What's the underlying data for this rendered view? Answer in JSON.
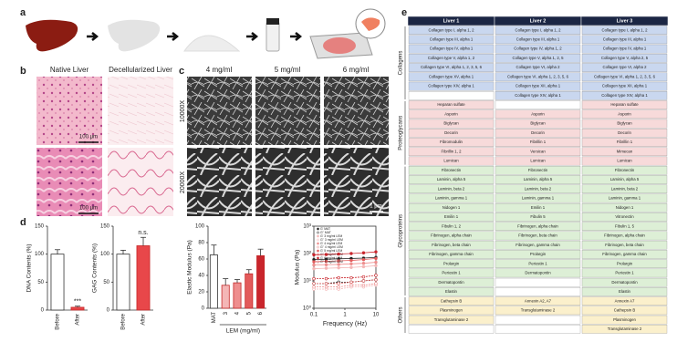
{
  "panels": {
    "a": {
      "label": "a"
    },
    "b": {
      "label": "b",
      "columns": [
        "Native Liver",
        "Decellularized Liver"
      ],
      "scale_bars": [
        "100 μm",
        "100 μm"
      ]
    },
    "c": {
      "label": "c",
      "columns": [
        "4 mg/ml",
        "5 mg/ml",
        "6 mg/ml"
      ],
      "rows": [
        "10000X",
        "20000X"
      ],
      "scale_bar": "1 μm"
    },
    "d": {
      "label": "d"
    },
    "e": {
      "label": "e"
    }
  },
  "chart_data": [
    {
      "type": "bar",
      "ylabel": "DNA Contents (%)",
      "categories": [
        "Before",
        "After"
      ],
      "values": [
        100,
        5
      ],
      "errors": [
        8,
        2
      ],
      "colors": [
        "#ffffff",
        "#e8474a"
      ],
      "ylim": [
        0,
        150
      ],
      "yticks": [
        0,
        50,
        100,
        150
      ],
      "annotation": "***"
    },
    {
      "type": "bar",
      "ylabel": "GAG Contents (%)",
      "categories": [
        "Before",
        "After"
      ],
      "values": [
        100,
        115
      ],
      "errors": [
        7,
        15
      ],
      "colors": [
        "#ffffff",
        "#e8474a"
      ],
      "ylim": [
        0,
        150
      ],
      "yticks": [
        0,
        50,
        100,
        150
      ],
      "annotation": "n.s."
    },
    {
      "type": "bar",
      "ylabel": "Elastic Modulus (Pa)",
      "xlabel": "LEM (mg/ml)",
      "categories": [
        "MAT",
        "3",
        "4",
        "5",
        "6"
      ],
      "values": [
        65,
        28,
        31,
        42,
        64
      ],
      "errors": [
        12,
        8,
        4,
        5,
        8
      ],
      "colors": [
        "#ffffff",
        "#f4b6b6",
        "#ee8e8e",
        "#e35b5b",
        "#c9252c"
      ],
      "ylim": [
        0,
        100
      ],
      "yticks": [
        0,
        20,
        40,
        60,
        80,
        100
      ]
    },
    {
      "type": "line",
      "ylabel": "Modulus (Pa)",
      "xlabel": "Frequency (Hz)",
      "log_x": true,
      "log_y": true,
      "legend": "upper left",
      "x": [
        0.1,
        0.25,
        0.63,
        1.6,
        4,
        10
      ],
      "xlim": [
        0.1,
        10
      ],
      "xticks": [
        0.1,
        1,
        10
      ],
      "ylim": [
        1,
        1000
      ],
      "yticks": [
        {
          "value": 1,
          "label": "10⁰"
        },
        {
          "value": 10,
          "label": "10¹"
        },
        {
          "value": 100,
          "label": "10²"
        },
        {
          "value": 1000,
          "label": "10³"
        }
      ],
      "series": [
        {
          "name": "G' MAT",
          "color": "#222222",
          "values": [
            60,
            62,
            64,
            66,
            68,
            72
          ]
        },
        {
          "name": "G'' MAT",
          "color": "#222222",
          "values": [
            8,
            8,
            9,
            9,
            10,
            11
          ]
        },
        {
          "name": "G' 3 mg/ml LEM",
          "color": "#f4b6b6",
          "values": [
            28,
            29,
            30,
            31,
            33,
            36
          ]
        },
        {
          "name": "G'' 3 mg/ml LEM",
          "color": "#f4b6b6",
          "values": [
            5,
            5,
            5,
            6,
            6,
            7
          ]
        },
        {
          "name": "G' 4 mg/ml LEM",
          "color": "#ee8e8e",
          "values": [
            38,
            39,
            40,
            42,
            44,
            48
          ]
        },
        {
          "name": "G'' 4 mg/ml LEM",
          "color": "#ee8e8e",
          "values": [
            6,
            6,
            6,
            7,
            7,
            8
          ]
        },
        {
          "name": "G' 5 mg/ml LEM",
          "color": "#e35b5b",
          "values": [
            50,
            52,
            54,
            56,
            60,
            66
          ]
        },
        {
          "name": "G'' 5 mg/ml LEM",
          "color": "#e35b5b",
          "values": [
            8,
            8,
            8,
            9,
            10,
            11
          ]
        },
        {
          "name": "G' 6 mg/ml LEM",
          "color": "#c9252c",
          "values": [
            90,
            92,
            96,
            100,
            106,
            115
          ]
        },
        {
          "name": "G'' 6 mg/ml LEM",
          "color": "#c9252c",
          "values": [
            12,
            12,
            13,
            13,
            14,
            16
          ]
        }
      ]
    }
  ],
  "table": {
    "header": [
      "Liver 1",
      "Liver 2",
      "Liver 3"
    ],
    "groups": [
      {
        "name": "Collagens",
        "color": "#c9d7ef",
        "rows": [
          [
            "Collagen type I, alpha 1, 2",
            "Collagen type I, alpha 1, 2",
            "Collagen type I, alpha 1, 2"
          ],
          [
            "Collagen type III, alpha 1",
            "Collagen type III, alpha 1",
            "Collagen type III, alpha 1"
          ],
          [
            "Collagen type IV, alpha 1",
            "Collagen type IV, alpha 1, 2",
            "Collagen type IV, alpha 1"
          ],
          [
            "Collagen type V, alpha 1, 2",
            "Collagen type V, alpha 1, 2, 5",
            "Collagen type V, alpha 2, 5"
          ],
          [
            "Collagen type VI, alpha 1, 2, 3, 5, 6",
            "Collagen type VI, alpha 2",
            "Collagen type VI, alpha 2"
          ],
          [
            "Collagen type XV, alpha 1",
            "Collagen type VI, alpha 1, 2, 3, 5, 6",
            "Collagen type VI, alpha 1, 2, 3, 5, 6"
          ],
          [
            "Collagen type XIV, alpha 1",
            "Collagen type XII, alpha 1",
            "Collagen type XII, alpha 1"
          ],
          [
            null,
            "Collagen type XIV, alpha 1",
            "Collagen type XIV, alpha 1"
          ]
        ]
      },
      {
        "name": "Proteoglycans",
        "color": "#f7dada",
        "rows": [
          [
            "Heparan sulfate",
            null,
            "Heparan sulfate"
          ],
          [
            "Asporin",
            "Asporin",
            "Asporin"
          ],
          [
            "Biglycan",
            "Biglycan",
            "Biglycan"
          ],
          [
            "Decorin",
            "Decorin",
            "Decorin"
          ],
          [
            "Fibromodulin",
            "Fibrillin 1",
            "Fibrillin 1"
          ],
          [
            "Fibrillin 1, 2",
            "Versican",
            "Mimecan"
          ],
          [
            "Lumican",
            "Lumican",
            "Lumican"
          ]
        ]
      },
      {
        "name": "Glycoproteins",
        "color": "#ddefd6",
        "rows": [
          [
            "Fibronectin",
            "Fibronectin",
            "Fibronectin"
          ],
          [
            "Laminin, alpha 5",
            "Laminin, alpha 5",
            "Laminin, alpha 5"
          ],
          [
            "Laminin, beta 2",
            "Laminin, beta 2",
            "Laminin, beta 2"
          ],
          [
            "Laminin, gamma 1",
            "Laminin, gamma 1",
            "Laminin, gamma 1"
          ],
          [
            "Nidogen 1",
            "Emilin 1",
            "Nidogen 1"
          ],
          [
            "Emilin 1",
            "Fibulin 5",
            "Vitronectin"
          ],
          [
            "Fibulin 1, 2",
            "Fibrinogen, alpha chain",
            "Fibulin 1, 5"
          ],
          [
            "Fibrinogen, alpha chain",
            "Fibrinogen, beta chain",
            "Fibrinogen, alpha chain"
          ],
          [
            "Fibrinogen, beta chain",
            "Fibrinogen, gamma chain",
            "Fibrinogen, beta chain"
          ],
          [
            "Fibrinogen, gamma chain",
            "Prolargin",
            "Fibrinogen, gamma chain"
          ],
          [
            "Prolargin",
            "Periostin 1",
            "Prolargin"
          ],
          [
            "Periostin 1",
            "Dermatopontin",
            "Periostin 1"
          ],
          [
            "Dermatopontin",
            null,
            "Dermatopontin"
          ],
          [
            "Elastin",
            null,
            "Elastin"
          ]
        ]
      },
      {
        "name": "Others",
        "color": "#fbf0cc",
        "rows": [
          [
            "Cathepsin B",
            "Annexin A2, A7",
            "Annexin A7"
          ],
          [
            "Plasminogen",
            "Transglutaminase 2",
            "Cathepsin B"
          ],
          [
            "Transglutaminase 2",
            null,
            "Plasminogen"
          ],
          [
            null,
            null,
            "Transglutaminase 2"
          ]
        ]
      }
    ]
  }
}
